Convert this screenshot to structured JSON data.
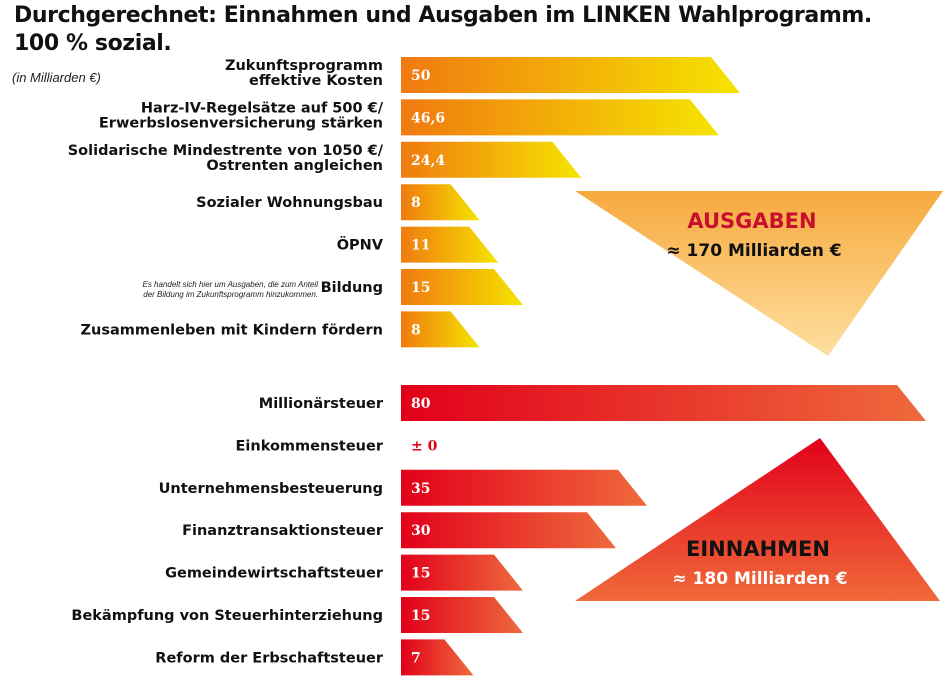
{
  "title_line1": "Durchgerechnet: Einnahmen und Ausgaben im LINKEN Wahlprogramm.",
  "title_line2": "100 % sozial.",
  "unit_note": "(in Milliarden €)",
  "colors": {
    "expense_start": "#f07a10",
    "expense_end": "#f5e400",
    "income_start": "#e2001a",
    "income_end": "#ee6a3c",
    "tri_expense_top": "#f7a93e",
    "tri_expense_bottom": "#fde0a0",
    "tri_income_top": "#e2001a",
    "tri_income_bottom": "#f06a3a"
  },
  "chart_data": {
    "type": "bar",
    "orientation": "horizontal",
    "groups": [
      {
        "name": "Ausgaben",
        "summary_title": "AUSGABEN",
        "summary_total": "≈ 170 Milliarden €",
        "categories": [
          "Zukunftsprogramm|effektive Kosten",
          "Harz-IV-Regelsätze auf 500 €/|Erwerbslosenversicherung stärken",
          "Solidarische Mindestrente von 1050 €/|Ostrenten angleichen",
          "Sozialer Wohnungsbau",
          "ÖPNV",
          "Bildung",
          "Zusammenleben mit Kindern fördern"
        ],
        "values": [
          50,
          46.6,
          24.4,
          8,
          11,
          15,
          8
        ],
        "value_labels": [
          "50",
          "46,6",
          "24,4",
          "8",
          "11",
          "15",
          "8"
        ]
      },
      {
        "name": "Einnahmen",
        "summary_title": "EINNAHMEN",
        "summary_total": "≈ 180 Milliarden €",
        "categories": [
          "Millionärsteuer",
          "Einkommensteuer",
          "Unternehmensbesteuerung",
          "Finanztransaktionsteuer",
          "Gemeindewirtschaftsteuer",
          "Bekämpfung von Steuerhinterziehung",
          "Reform der Erbschaftsteuer"
        ],
        "values": [
          80,
          0,
          35,
          30,
          15,
          15,
          7
        ],
        "value_labels": [
          "80",
          "± 0",
          "35",
          "30",
          "15",
          "15",
          "7"
        ]
      }
    ],
    "annotations": [
      "Es handelt sich hier um Ausgaben, die zum Anteil|der Bildung im Zukunftsprogramm hinzukommen."
    ],
    "xlim": [
      0,
      80
    ]
  }
}
